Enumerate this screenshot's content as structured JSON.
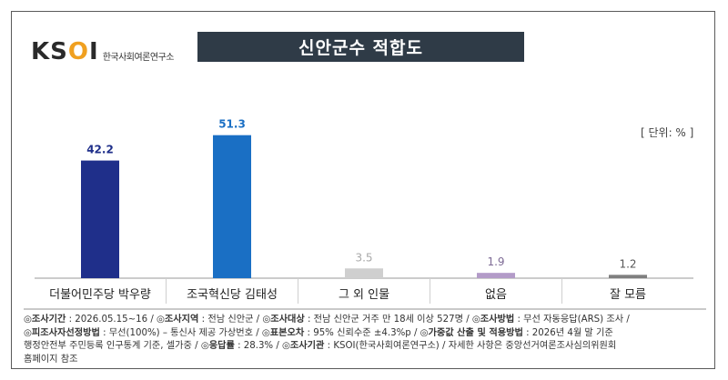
{
  "brand": {
    "mark": "KSOI",
    "subtitle": "한국사회여론연구소"
  },
  "chart_data": {
    "type": "bar",
    "title": "신안군수 적합도",
    "unit_label": "[ 단위: % ]",
    "categories": [
      "더불어민주당 박우량",
      "조국혁신당 김태성",
      "그 외 인물",
      "없음",
      "잘 모름"
    ],
    "values": [
      42.2,
      51.3,
      3.5,
      1.9,
      1.2
    ],
    "value_labels": [
      "42.2",
      "51.3",
      "3.5",
      "1.9",
      "1.2"
    ],
    "colors": [
      "#1f2f8a",
      "#1a6fc4",
      "#cfcfcf",
      "#b39bc8",
      "#7f7f7f"
    ],
    "label_colors": [
      "#1f2f8a",
      "#1a6fc4",
      "#a9a9a9",
      "#7d6a95",
      "#555555"
    ],
    "ylim": [
      0,
      60
    ],
    "grid": false,
    "legend": "none"
  },
  "footer": {
    "line1_k1": "◎조사기간",
    "line1_v1": " : 2026.05.15~16 / ",
    "line1_k2": "◎조사지역",
    "line1_v2": " : 전남 신안군 / ",
    "line1_k3": "◎조사대상",
    "line1_v3": " : 전남 신안군 거주 만 18세 이상 527명 / ",
    "line1_k4": "◎조사방법",
    "line1_v4": " : 무선 자동응답(ARS) 조사 /",
    "line2_k1": "◎피조사자선정방법",
    "line2_v1": " : 무선(100%) – 통신사 제공 가상번호 / ",
    "line2_k2": "◎표본오차",
    "line2_v2": " : 95% 신뢰수준 ±4.3%p / ",
    "line2_k3": "◎가중값 산출 및 적용방법",
    "line2_v3": " : 2026년 4월 말 기준",
    "line3_v1": "행정안전부 주민등록 인구통계 기준, 셀가중 / ",
    "line3_k2": "◎응답률",
    "line3_v2": " : 28.3% / ",
    "line3_k3": "◎조사기관",
    "line3_v3": " : KSOI(한국사회여론연구소) / 자세한 사항은 중앙선거여론조사심의위원회",
    "line4_v1": "홈페이지 참조"
  }
}
